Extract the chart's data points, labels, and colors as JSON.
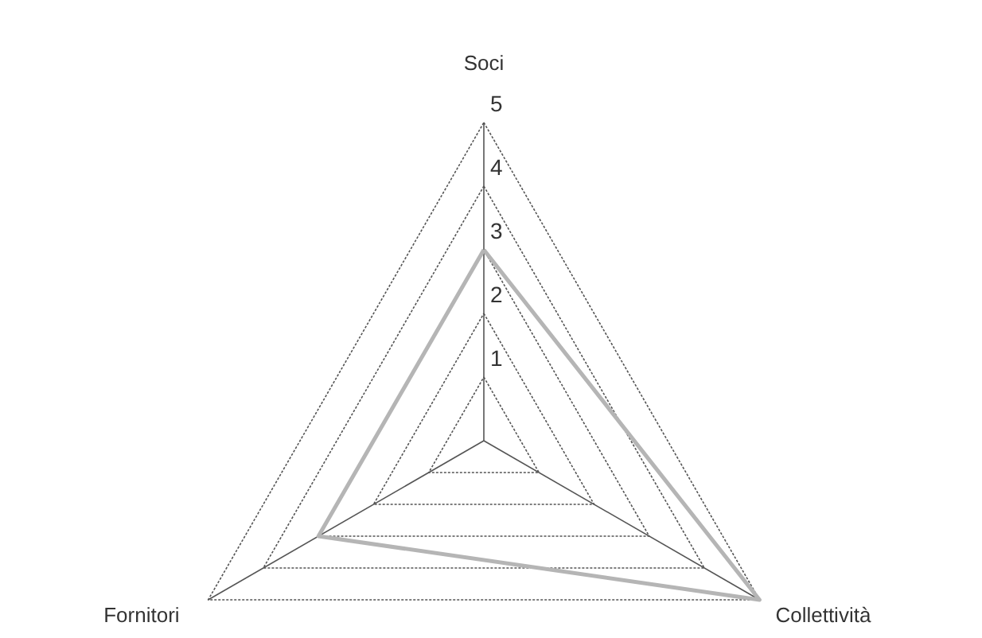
{
  "chart_data": {
    "type": "radar",
    "categories": [
      "Soci",
      "Collettività",
      "Fornitori"
    ],
    "series": [
      {
        "color": "#b5b5b5",
        "values": [
          3,
          5,
          3
        ]
      }
    ],
    "ylim": [
      0,
      5
    ],
    "yticks": [
      1,
      2,
      3,
      4,
      5
    ],
    "grid": true
  }
}
